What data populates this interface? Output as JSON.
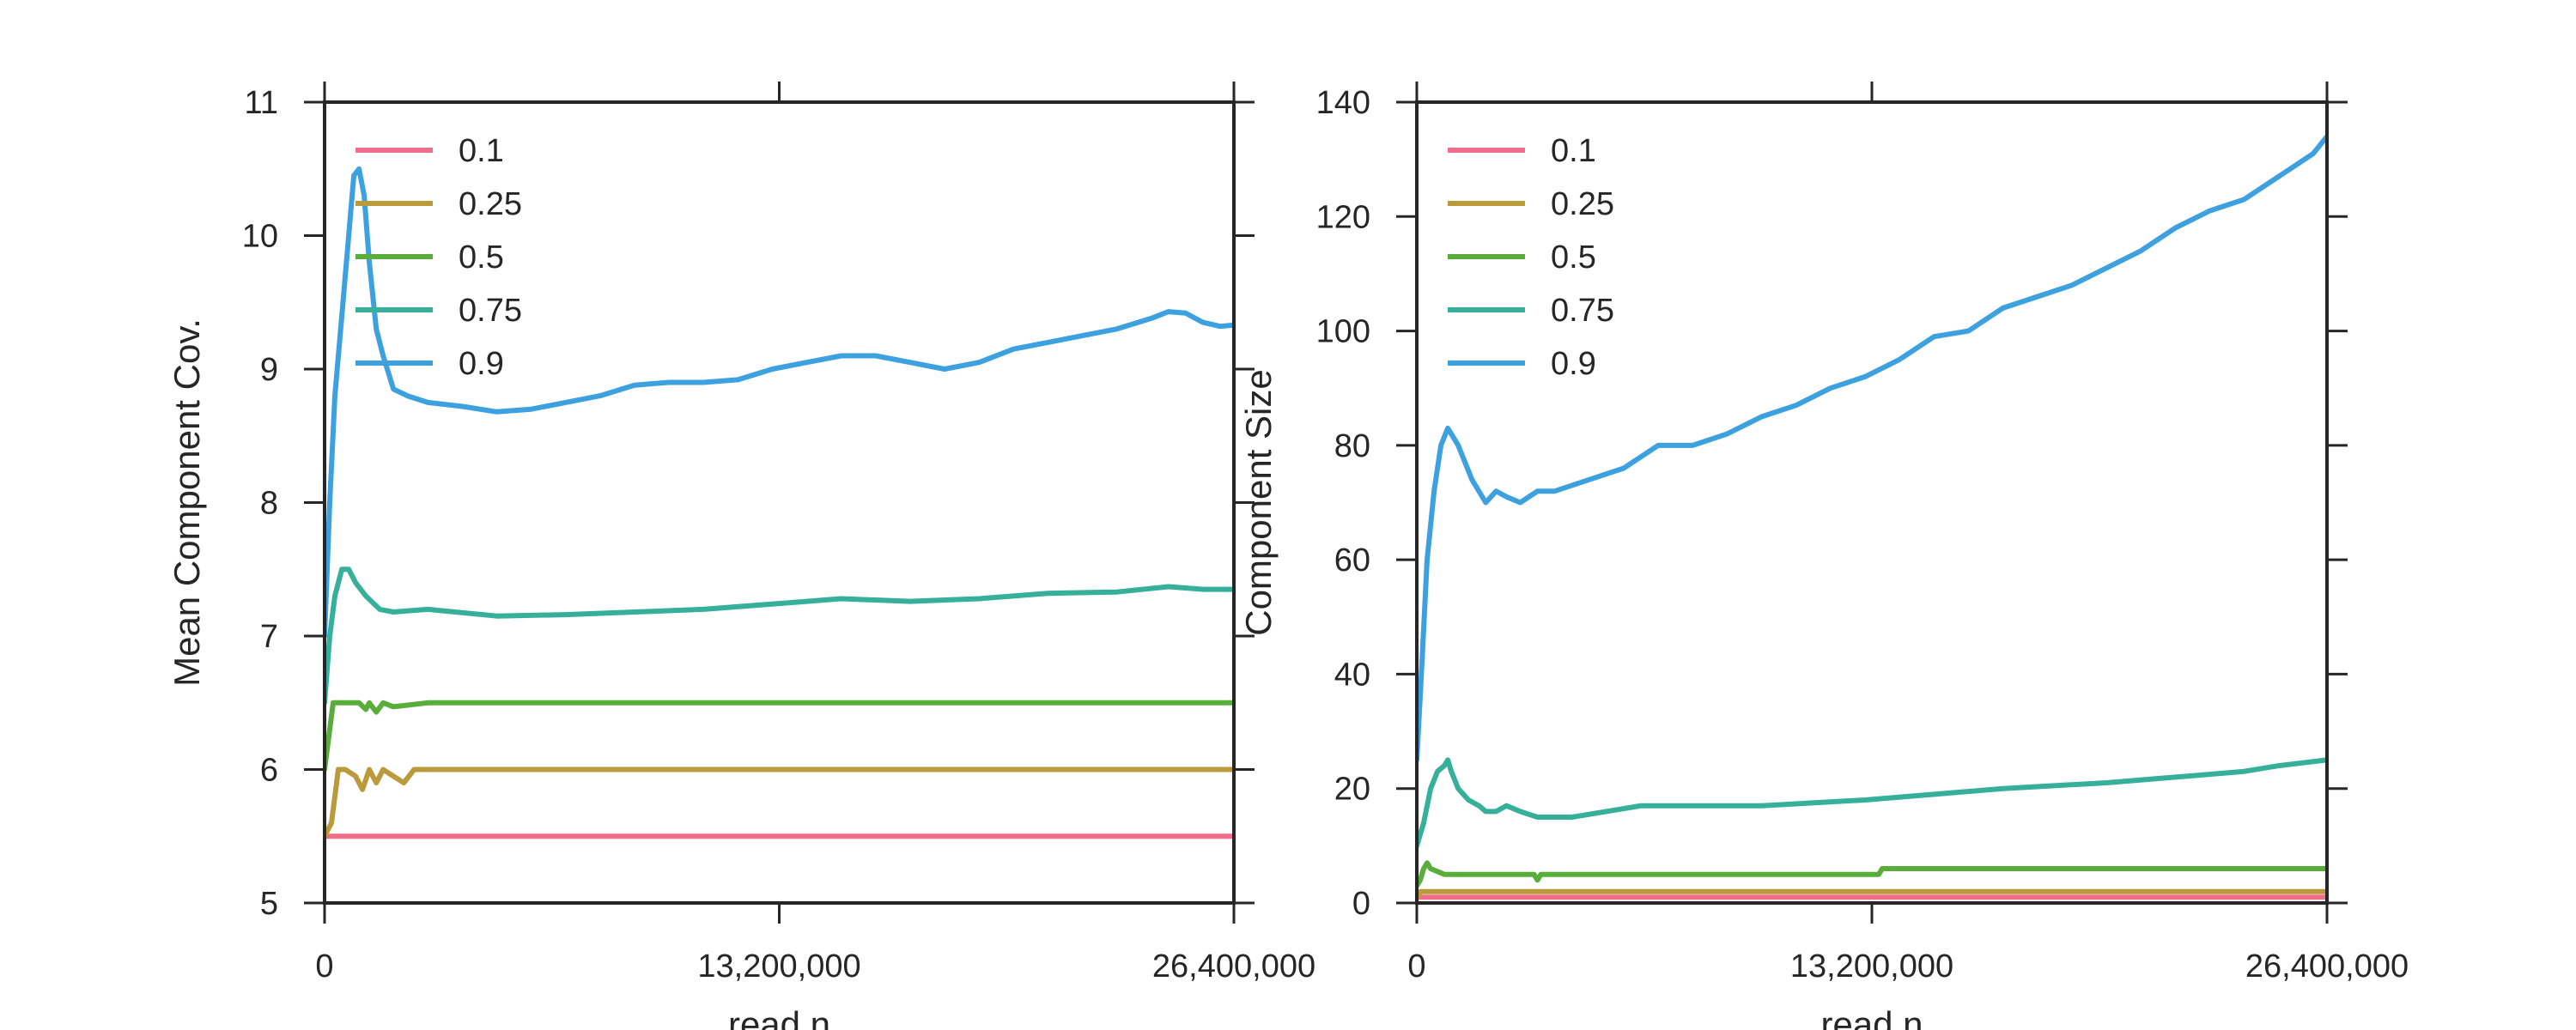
{
  "chart_data": [
    {
      "type": "line",
      "xlabel": "read  n",
      "ylabel": "Mean Component Cov.",
      "xlim": [
        0,
        26400000
      ],
      "ylim": [
        5,
        11
      ],
      "xticks": [
        0,
        13200000,
        26400000
      ],
      "xtick_labels": [
        "0",
        "13,200,000",
        "26,400,000"
      ],
      "yticks": [
        5,
        6,
        7,
        8,
        9,
        10,
        11
      ],
      "ytick_labels": [
        "5",
        "6",
        "7",
        "8",
        "9",
        "10",
        "11"
      ],
      "grid": false,
      "legend_position": "top-left",
      "series": [
        {
          "name": "0.1",
          "color": "#f06e8a",
          "x": [
            0,
            26400000
          ],
          "y": [
            5.5,
            5.5
          ]
        },
        {
          "name": "0.25",
          "color": "#bb9a3c",
          "x": [
            0,
            200000,
            400000,
            600000,
            900000,
            1100000,
            1300000,
            1500000,
            1700000,
            2000000,
            2300000,
            2600000,
            2700000,
            3000000,
            26400000
          ],
          "y": [
            5.5,
            5.6,
            6.0,
            6.0,
            5.95,
            5.85,
            6.0,
            5.9,
            6.0,
            5.95,
            5.9,
            6.0,
            6.0,
            6.0,
            6.0
          ]
        },
        {
          "name": "0.5",
          "color": "#59ad3a",
          "x": [
            0,
            150000,
            250000,
            400000,
            1000000,
            1200000,
            1300000,
            1500000,
            1700000,
            2000000,
            3000000,
            6000000,
            26400000
          ],
          "y": [
            6.0,
            6.3,
            6.5,
            6.5,
            6.5,
            6.45,
            6.5,
            6.43,
            6.5,
            6.47,
            6.5,
            6.5,
            6.5
          ]
        },
        {
          "name": "0.75",
          "color": "#36b09a",
          "x": [
            0,
            150000,
            300000,
            500000,
            700000,
            900000,
            1200000,
            1600000,
            2000000,
            3000000,
            5000000,
            7000000,
            9000000,
            11000000,
            13000000,
            15000000,
            17000000,
            19000000,
            21000000,
            23000000,
            24500000,
            25500000,
            26400000
          ],
          "y": [
            6.5,
            7.0,
            7.3,
            7.5,
            7.5,
            7.4,
            7.3,
            7.2,
            7.18,
            7.2,
            7.15,
            7.16,
            7.18,
            7.2,
            7.24,
            7.28,
            7.26,
            7.28,
            7.32,
            7.33,
            7.37,
            7.35,
            7.35
          ]
        },
        {
          "name": "0.9",
          "color": "#3da1e0",
          "x": [
            0,
            150000,
            300000,
            500000,
            700000,
            850000,
            1000000,
            1150000,
            1300000,
            1500000,
            1700000,
            2000000,
            2400000,
            3000000,
            4000000,
            5000000,
            6000000,
            7000000,
            8000000,
            9000000,
            10000000,
            11000000,
            12000000,
            13000000,
            14000000,
            15000000,
            16000000,
            17000000,
            18000000,
            19000000,
            20000000,
            21000000,
            22000000,
            23000000,
            24000000,
            24500000,
            25000000,
            25500000,
            26000000,
            26400000
          ],
          "y": [
            7.0,
            8.0,
            8.8,
            9.4,
            10.0,
            10.45,
            10.5,
            10.3,
            9.8,
            9.3,
            9.1,
            8.85,
            8.8,
            8.75,
            8.72,
            8.68,
            8.7,
            8.75,
            8.8,
            8.88,
            8.9,
            8.9,
            8.92,
            9.0,
            9.05,
            9.1,
            9.1,
            9.05,
            9.0,
            9.05,
            9.15,
            9.2,
            9.25,
            9.3,
            9.38,
            9.43,
            9.42,
            9.35,
            9.32,
            9.33
          ]
        }
      ]
    },
    {
      "type": "line",
      "xlabel": "read  n",
      "ylabel": "Component Size",
      "xlim": [
        0,
        26400000
      ],
      "ylim": [
        0,
        140
      ],
      "xticks": [
        0,
        13200000,
        26400000
      ],
      "xtick_labels": [
        "0",
        "13,200,000",
        "26,400,000"
      ],
      "yticks": [
        0,
        20,
        40,
        60,
        80,
        100,
        120,
        140
      ],
      "ytick_labels": [
        "0",
        "20",
        "40",
        "60",
        "80",
        "100",
        "120",
        "140"
      ],
      "grid": false,
      "legend_position": "top-left",
      "series": [
        {
          "name": "0.1",
          "color": "#f06e8a",
          "x": [
            0,
            26400000
          ],
          "y": [
            1,
            1
          ]
        },
        {
          "name": "0.25",
          "color": "#bb9a3c",
          "x": [
            0,
            100000,
            200000,
            26400000
          ],
          "y": [
            1,
            2,
            2,
            2
          ]
        },
        {
          "name": "0.5",
          "color": "#59ad3a",
          "x": [
            0,
            100000,
            200000,
            300000,
            400000,
            800000,
            1000000,
            3400000,
            3500000,
            3600000,
            13400000,
            13500000,
            14000000,
            15000000,
            26400000
          ],
          "y": [
            3,
            4,
            6,
            7,
            6,
            5,
            5,
            5,
            4,
            5,
            5,
            6,
            6,
            6,
            6
          ]
        },
        {
          "name": "0.75",
          "color": "#36b09a",
          "x": [
            0,
            200000,
            400000,
            600000,
            800000,
            900000,
            1000000,
            1200000,
            1500000,
            1800000,
            2000000,
            2300000,
            2600000,
            3000000,
            3500000,
            4500000,
            5500000,
            6500000,
            7500000,
            10000000,
            13000000,
            15000000,
            17000000,
            20000000,
            22000000,
            24000000,
            25000000,
            26400000
          ],
          "y": [
            10,
            14,
            20,
            23,
            24,
            25,
            23,
            20,
            18,
            17,
            16,
            16,
            17,
            16,
            15,
            15,
            16,
            17,
            17,
            17,
            18,
            19,
            20,
            21,
            22,
            23,
            24,
            25
          ]
        },
        {
          "name": "0.9",
          "color": "#3da1e0",
          "x": [
            0,
            150000,
            300000,
            500000,
            700000,
            900000,
            1000000,
            1200000,
            1400000,
            1600000,
            1800000,
            2000000,
            2300000,
            2600000,
            3000000,
            3500000,
            4000000,
            5000000,
            6000000,
            6500000,
            7000000,
            8000000,
            9000000,
            10000000,
            11000000,
            12000000,
            13000000,
            14000000,
            15000000,
            16000000,
            17000000,
            18000000,
            19000000,
            20000000,
            21000000,
            22000000,
            23000000,
            24000000,
            25000000,
            26000000,
            26400000
          ],
          "y": [
            25,
            42,
            60,
            72,
            80,
            83,
            82,
            80,
            77,
            74,
            72,
            70,
            72,
            71,
            70,
            72,
            72,
            74,
            76,
            78,
            80,
            80,
            82,
            85,
            87,
            90,
            92,
            95,
            99,
            100,
            104,
            106,
            108,
            111,
            114,
            118,
            121,
            123,
            127,
            131,
            134
          ]
        }
      ]
    }
  ]
}
